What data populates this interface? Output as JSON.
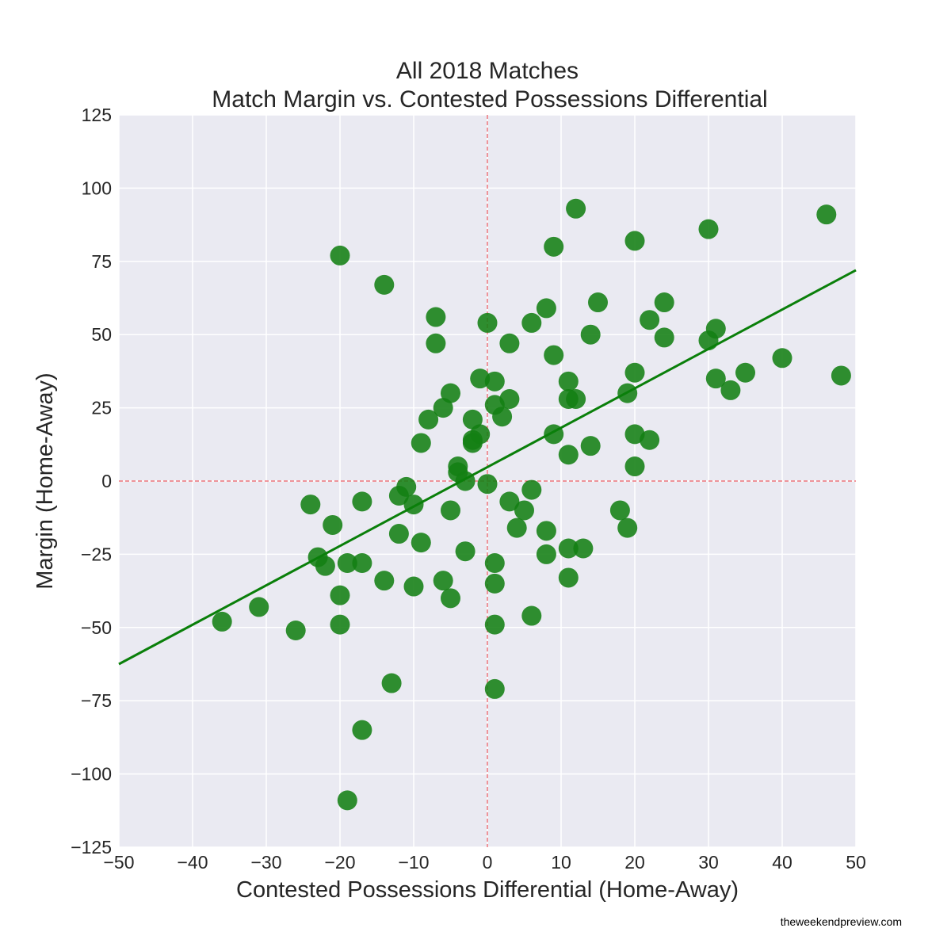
{
  "chart_data": {
    "type": "scatter",
    "title": [
      "All 2018 Matches",
      "Match Margin vs. Contested Possessions Differential"
    ],
    "xlabel": "Contested Possessions Differential (Home-Away)",
    "ylabel": "Margin (Home-Away)",
    "xlim": [
      -50,
      50
    ],
    "ylim": [
      -125,
      125
    ],
    "xticks": [
      -50,
      -40,
      -30,
      -20,
      -10,
      0,
      10,
      20,
      30,
      40,
      50
    ],
    "yticks": [
      -125,
      -100,
      -75,
      -50,
      -25,
      0,
      25,
      50,
      75,
      100,
      125
    ],
    "xtick_labels": [
      "−50",
      "−40",
      "−30",
      "−20",
      "−10",
      "0",
      "10",
      "20",
      "30",
      "40",
      "50"
    ],
    "ytick_labels": [
      "−125",
      "−100",
      "−75",
      "−50",
      "−25",
      "0",
      "25",
      "50",
      "75",
      "100",
      "125"
    ],
    "grid": true,
    "point_color": "#137f13",
    "line_color": "#0a7f0a",
    "reference_line_color": "#e8323c",
    "background_color": "#eaeaf2",
    "reference_lines": {
      "x": 0,
      "y": 0
    },
    "trend_line": {
      "x": [
        -50,
        50
      ],
      "y": [
        -62.5,
        72
      ]
    },
    "points": [
      [
        12,
        93
      ],
      [
        46,
        91
      ],
      [
        30,
        86
      ],
      [
        20,
        82
      ],
      [
        9,
        80
      ],
      [
        -20,
        77
      ],
      [
        -14,
        67
      ],
      [
        15,
        61
      ],
      [
        24,
        61
      ],
      [
        8,
        59
      ],
      [
        -7,
        56
      ],
      [
        22,
        55
      ],
      [
        0,
        54
      ],
      [
        6,
        54
      ],
      [
        31,
        52
      ],
      [
        14,
        50
      ],
      [
        24,
        49
      ],
      [
        30,
        48
      ],
      [
        -7,
        47
      ],
      [
        3,
        47
      ],
      [
        9,
        43
      ],
      [
        40,
        42
      ],
      [
        20,
        37
      ],
      [
        35,
        37
      ],
      [
        48,
        36
      ],
      [
        -1,
        35
      ],
      [
        31,
        35
      ],
      [
        1,
        34
      ],
      [
        11,
        34
      ],
      [
        33,
        31
      ],
      [
        -5,
        30
      ],
      [
        19,
        30
      ],
      [
        3,
        28
      ],
      [
        11,
        28
      ],
      [
        12,
        28
      ],
      [
        1,
        26
      ],
      [
        -6,
        25
      ],
      [
        2,
        22
      ],
      [
        -8,
        21
      ],
      [
        -2,
        21
      ],
      [
        -1,
        16
      ],
      [
        9,
        16
      ],
      [
        20,
        16
      ],
      [
        -2,
        14
      ],
      [
        22,
        14
      ],
      [
        -2,
        13
      ],
      [
        -9,
        13
      ],
      [
        14,
        12
      ],
      [
        11,
        9
      ],
      [
        20,
        5
      ],
      [
        -4,
        5
      ],
      [
        -4,
        3
      ],
      [
        -3,
        0
      ],
      [
        0,
        -1
      ],
      [
        -11,
        -2
      ],
      [
        6,
        -3
      ],
      [
        -12,
        -5
      ],
      [
        3,
        -7
      ],
      [
        -17,
        -7
      ],
      [
        -10,
        -8
      ],
      [
        -24,
        -8
      ],
      [
        5,
        -10
      ],
      [
        -5,
        -10
      ],
      [
        18,
        -10
      ],
      [
        -21,
        -15
      ],
      [
        4,
        -16
      ],
      [
        19,
        -16
      ],
      [
        8,
        -17
      ],
      [
        -12,
        -18
      ],
      [
        -9,
        -21
      ],
      [
        11,
        -23
      ],
      [
        13,
        -23
      ],
      [
        -3,
        -24
      ],
      [
        8,
        -25
      ],
      [
        -23,
        -26
      ],
      [
        -19,
        -28
      ],
      [
        -17,
        -28
      ],
      [
        1,
        -28
      ],
      [
        -22,
        -29
      ],
      [
        11,
        -33
      ],
      [
        -14,
        -34
      ],
      [
        -6,
        -34
      ],
      [
        1,
        -35
      ],
      [
        -10,
        -36
      ],
      [
        -20,
        -39
      ],
      [
        -5,
        -40
      ],
      [
        -31,
        -43
      ],
      [
        6,
        -46
      ],
      [
        -36,
        -48
      ],
      [
        -20,
        -49
      ],
      [
        1,
        -49
      ],
      [
        -26,
        -51
      ],
      [
        -13,
        -69
      ],
      [
        1,
        -71
      ],
      [
        -17,
        -85
      ],
      [
        -19,
        -109
      ]
    ]
  },
  "footer": {
    "credit": "theweekendpreview.com"
  }
}
